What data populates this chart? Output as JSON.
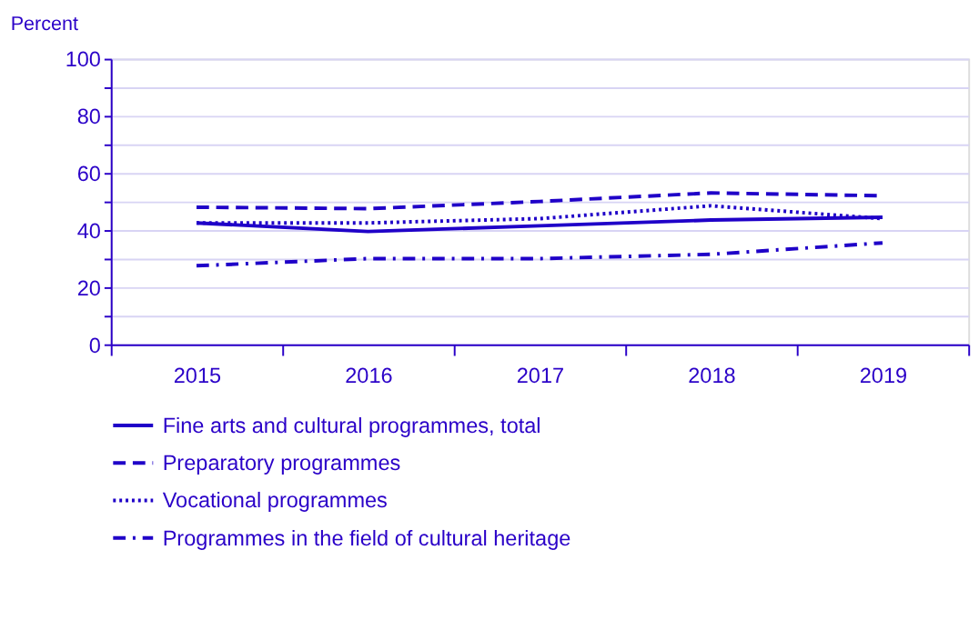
{
  "chart_data": {
    "type": "line",
    "ylabel": "Percent",
    "categories": [
      "2015",
      "2016",
      "2017",
      "2018",
      "2019"
    ],
    "ylim": [
      0,
      100
    ],
    "yticks": [
      0,
      {
        "value": 10,
        "label": null
      },
      20,
      {
        "value": 30,
        "label": null
      },
      40,
      {
        "value": 50,
        "label": null
      },
      60,
      {
        "value": 70,
        "label": null
      },
      80,
      {
        "value": 90,
        "label": null
      },
      100
    ],
    "grid": "y",
    "legend": "bottom",
    "marker": "none",
    "series": [
      {
        "name": "Fine arts and cultural programmes, total",
        "color": "#1f00c8",
        "line_style": "solid",
        "values": [
          42.5,
          39.5,
          41.5,
          43.5,
          44.5
        ]
      },
      {
        "name": "Preparatory programmes",
        "color": "#1f00c8",
        "line_style": "dashed",
        "values": [
          48,
          47.5,
          50,
          53,
          52
        ]
      },
      {
        "name": "Vocational programmes",
        "color": "#1f00c8",
        "line_style": "dotted",
        "values": [
          42.5,
          42.5,
          44,
          48.5,
          44
        ]
      },
      {
        "name": "Programmes in the field of cultural heritage",
        "color": "#1f00c8",
        "line_style": "dashdot",
        "values": [
          27.5,
          30,
          30,
          31.5,
          35.5
        ]
      }
    ]
  }
}
